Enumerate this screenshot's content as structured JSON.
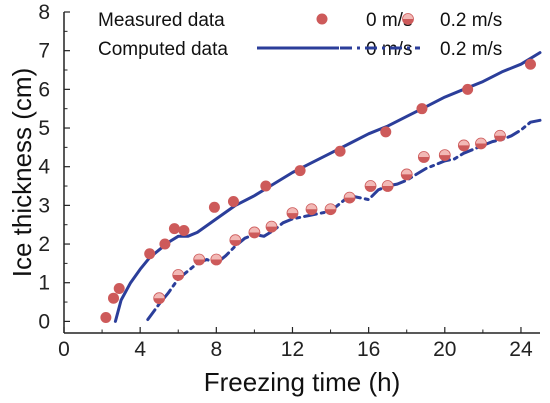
{
  "chart_data": {
    "type": "line",
    "title": "",
    "xlabel": "Freezing time (h)",
    "ylabel": "Ice thickness (cm)",
    "xlim": [
      0,
      25
    ],
    "ylim": [
      -0.3,
      8
    ],
    "xticks": [
      0,
      4,
      8,
      12,
      16,
      20,
      24
    ],
    "yticks": [
      0,
      1,
      2,
      3,
      4,
      5,
      6,
      7,
      8
    ],
    "grid": false,
    "legend_position": "top",
    "legend": {
      "row1_label": "Measured  data",
      "row2_label": "Computed data",
      "col1_label": "0 m/s",
      "col2_label": "0.2 m/s"
    },
    "colors": {
      "measured_marker": "#cd5a5a",
      "measured_marker_half": "#f2b9b6",
      "computed_line": "#2b3e9a",
      "axis": "#222222"
    },
    "series": [
      {
        "kind": "measured",
        "velocity": "0 m/s",
        "marker": "filled-circle",
        "x": [
          2.2,
          2.6,
          2.9,
          4.5,
          5.3,
          5.8,
          6.3,
          7.9,
          8.9,
          10.6,
          12.4,
          14.5,
          16.9,
          18.8,
          21.2,
          24.5
        ],
        "y": [
          0.1,
          0.6,
          0.85,
          1.75,
          2.0,
          2.4,
          2.35,
          2.95,
          3.1,
          3.5,
          3.9,
          4.4,
          4.9,
          5.5,
          6.0,
          6.65
        ]
      },
      {
        "kind": "measured",
        "velocity": "0.2 m/s",
        "marker": "half-filled-circle",
        "x": [
          5.0,
          6.0,
          7.1,
          8.0,
          9.0,
          10.0,
          10.9,
          12.0,
          13.0,
          14.0,
          15.0,
          16.1,
          17.0,
          18.0,
          18.9,
          20.0,
          21.0,
          21.9,
          22.9
        ],
        "y": [
          0.6,
          1.2,
          1.6,
          1.6,
          2.1,
          2.3,
          2.45,
          2.8,
          2.9,
          2.9,
          3.2,
          3.5,
          3.5,
          3.8,
          4.25,
          4.3,
          4.55,
          4.6,
          4.8
        ]
      },
      {
        "kind": "computed",
        "velocity": "0 m/s",
        "line": "solid",
        "x": [
          2.7,
          3.0,
          3.5,
          4.0,
          4.5,
          5.0,
          5.5,
          6.0,
          6.5,
          7.0,
          8.0,
          9.0,
          10.0,
          11.0,
          12.0,
          13.0,
          14.0,
          15.0,
          16.0,
          17.0,
          18.0,
          19.0,
          20.0,
          21.0,
          22.0,
          23.0,
          24.0,
          25.0
        ],
        "y": [
          0.0,
          0.55,
          1.0,
          1.35,
          1.65,
          1.85,
          2.05,
          2.2,
          2.2,
          2.3,
          2.65,
          3.0,
          3.25,
          3.55,
          3.85,
          4.1,
          4.35,
          4.6,
          4.85,
          5.05,
          5.3,
          5.55,
          5.8,
          6.0,
          6.2,
          6.45,
          6.65,
          6.95
        ]
      },
      {
        "kind": "computed",
        "velocity": "0.2 m/s",
        "line": "dash-dot",
        "x": [
          4.4,
          5.0,
          5.5,
          6.0,
          6.5,
          7.0,
          7.5,
          8.0,
          8.5,
          9.0,
          9.5,
          10.0,
          10.5,
          11.0,
          11.5,
          12.0,
          12.5,
          13.0,
          13.5,
          14.0,
          14.5,
          15.0,
          15.5,
          16.0,
          16.5,
          17.0,
          17.5,
          18.0,
          18.5,
          19.0,
          19.5,
          20.0,
          20.5,
          21.0,
          21.5,
          22.0,
          22.5,
          23.0,
          23.5,
          24.0,
          24.5,
          25.0
        ],
        "y": [
          0.05,
          0.45,
          0.75,
          1.1,
          1.3,
          1.5,
          1.6,
          1.5,
          1.7,
          1.95,
          2.15,
          2.25,
          2.2,
          2.35,
          2.55,
          2.65,
          2.7,
          2.75,
          2.8,
          2.85,
          3.05,
          3.25,
          3.2,
          3.15,
          3.4,
          3.5,
          3.55,
          3.65,
          3.8,
          3.95,
          4.05,
          4.15,
          4.2,
          4.35,
          4.45,
          4.55,
          4.65,
          4.7,
          4.8,
          4.95,
          5.15,
          5.2
        ]
      }
    ]
  }
}
